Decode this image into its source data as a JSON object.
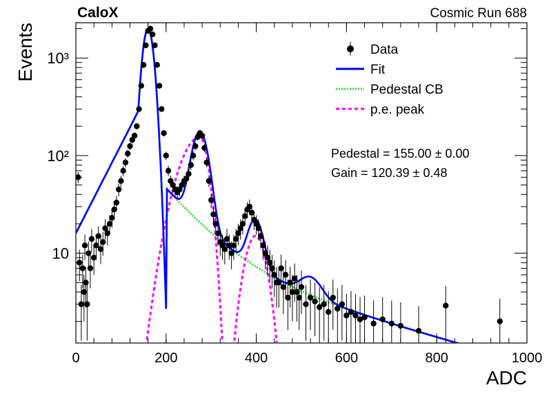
{
  "header": {
    "experiment": "CaloX",
    "run_label": "Cosmic Run 688"
  },
  "fit_results": {
    "pedestal": "Pedestal = 155.00 ± 0.00",
    "gain": "Gain = 120.39 ± 0.48"
  },
  "colors": {
    "data": "#000000",
    "fit": "#0000ff",
    "pedestal": "#33dd33",
    "pe_peak": "#ff00ff"
  },
  "chart_data": {
    "type": "scatter",
    "xlabel": "ADC",
    "ylabel": "Events",
    "xlim": [
      0,
      1000
    ],
    "ylim": [
      1.2,
      2300
    ],
    "yscale": "log",
    "grid": false,
    "legend_position": "top-right",
    "x_ticks": [
      0,
      200,
      400,
      600,
      800,
      1000
    ],
    "y_ticks": [
      {
        "value": 10,
        "label": "10"
      },
      {
        "value": 100,
        "label": "10²"
      },
      {
        "value": 1000,
        "label": "10³"
      }
    ],
    "legend": [
      {
        "key": "data",
        "label": "Data",
        "style": "marker"
      },
      {
        "key": "fit",
        "label": "Fit",
        "style": "solid"
      },
      {
        "key": "pedestal",
        "label": "Pedestal CB",
        "style": "dotted"
      },
      {
        "key": "pe_peak",
        "label": "p.e. peak",
        "style": "dashed"
      }
    ],
    "data_points": [
      [
        5,
        60
      ],
      [
        8,
        8
      ],
      [
        12,
        3
      ],
      [
        15,
        7
      ],
      [
        18,
        4
      ],
      [
        20,
        12
      ],
      [
        22,
        5
      ],
      [
        25,
        3
      ],
      [
        28,
        10
      ],
      [
        32,
        7
      ],
      [
        35,
        14
      ],
      [
        40,
        9
      ],
      [
        45,
        12
      ],
      [
        50,
        15
      ],
      [
        55,
        11
      ],
      [
        60,
        13
      ],
      [
        65,
        18
      ],
      [
        70,
        16
      ],
      [
        75,
        20
      ],
      [
        80,
        23
      ],
      [
        85,
        28
      ],
      [
        90,
        33
      ],
      [
        95,
        45
      ],
      [
        100,
        55
      ],
      [
        105,
        70
      ],
      [
        110,
        85
      ],
      [
        115,
        105
      ],
      [
        120,
        125
      ],
      [
        125,
        145
      ],
      [
        130,
        160
      ],
      [
        135,
        200
      ],
      [
        140,
        300
      ],
      [
        145,
        520
      ],
      [
        150,
        850
      ],
      [
        155,
        1350
      ],
      [
        160,
        1900
      ],
      [
        165,
        2000
      ],
      [
        170,
        1750
      ],
      [
        175,
        1350
      ],
      [
        180,
        850
      ],
      [
        185,
        520
      ],
      [
        190,
        300
      ],
      [
        195,
        170
      ],
      [
        200,
        100
      ],
      [
        205,
        70
      ],
      [
        210,
        55
      ],
      [
        215,
        50
      ],
      [
        220,
        45
      ],
      [
        225,
        42
      ],
      [
        230,
        45
      ],
      [
        235,
        50
      ],
      [
        240,
        55
      ],
      [
        245,
        58
      ],
      [
        250,
        65
      ],
      [
        255,
        80
      ],
      [
        260,
        100
      ],
      [
        265,
        125
      ],
      [
        270,
        155
      ],
      [
        275,
        170
      ],
      [
        280,
        160
      ],
      [
        285,
        120
      ],
      [
        290,
        85
      ],
      [
        295,
        55
      ],
      [
        300,
        35
      ],
      [
        305,
        25
      ],
      [
        310,
        20
      ],
      [
        315,
        16
      ],
      [
        320,
        13
      ],
      [
        325,
        12
      ],
      [
        330,
        11
      ],
      [
        335,
        14
      ],
      [
        340,
        12
      ],
      [
        345,
        10
      ],
      [
        350,
        12
      ],
      [
        355,
        14
      ],
      [
        360,
        16
      ],
      [
        365,
        18
      ],
      [
        370,
        20
      ],
      [
        375,
        24
      ],
      [
        380,
        28
      ],
      [
        385,
        30
      ],
      [
        390,
        26
      ],
      [
        395,
        22
      ],
      [
        400,
        20
      ],
      [
        405,
        18
      ],
      [
        410,
        15
      ],
      [
        415,
        12
      ],
      [
        420,
        10
      ],
      [
        425,
        9
      ],
      [
        430,
        8
      ],
      [
        435,
        7
      ],
      [
        440,
        6
      ],
      [
        445,
        5
      ],
      [
        450,
        5
      ],
      [
        455,
        7
      ],
      [
        460,
        4.5
      ],
      [
        465,
        6
      ],
      [
        470,
        3.5
      ],
      [
        475,
        5
      ],
      [
        480,
        4
      ],
      [
        485,
        5.5
      ],
      [
        490,
        4
      ],
      [
        495,
        3.5
      ],
      [
        500,
        4.5
      ],
      [
        510,
        3
      ],
      [
        520,
        3.5
      ],
      [
        530,
        3.2
      ],
      [
        540,
        2.8
      ],
      [
        550,
        3
      ],
      [
        560,
        2.5
      ],
      [
        570,
        3.5
      ],
      [
        580,
        2.7
      ],
      [
        590,
        3
      ],
      [
        600,
        2.3
      ],
      [
        610,
        2.5
      ],
      [
        620,
        2.3
      ],
      [
        630,
        2.1
      ],
      [
        640,
        2.2
      ],
      [
        660,
        1.9
      ],
      [
        680,
        2.1
      ],
      [
        700,
        1.9
      ],
      [
        720,
        1.8
      ],
      [
        760,
        1.6
      ],
      [
        820,
        2.9
      ],
      [
        940,
        2.0
      ]
    ]
  }
}
